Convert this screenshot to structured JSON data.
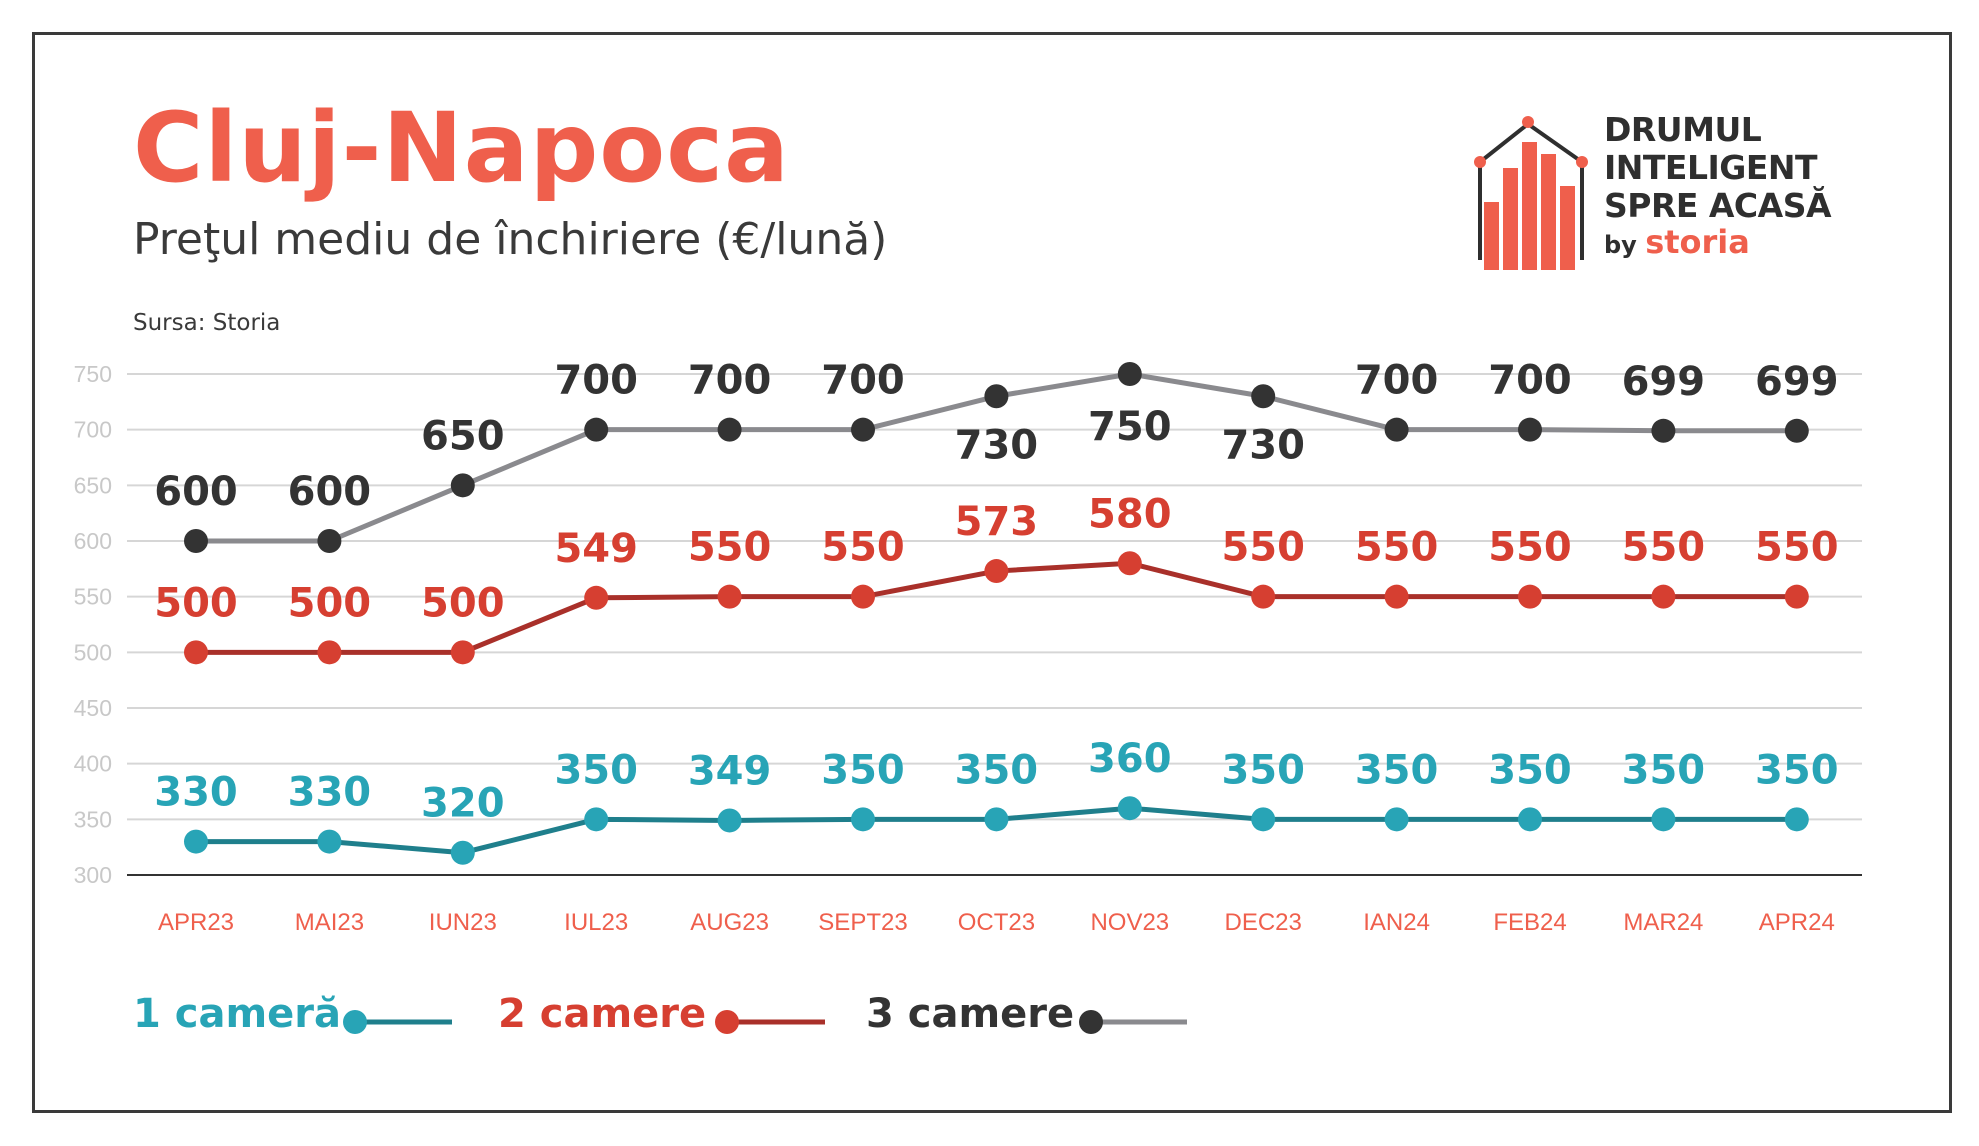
{
  "title": "Cluj-Napoca",
  "subtitle": "Preţul mediu de închiriere (€/lună)",
  "source": "Sursa: Storia",
  "logo": {
    "lines": [
      "DRUMUL",
      "INTELIGENT",
      "SPRE ACASĂ"
    ],
    "by": "by",
    "brand": "storia"
  },
  "colors": {
    "accent": "#ef5f4c",
    "series_1": "#28a4b6",
    "series_1_line": "#1f7f8c",
    "series_2": "#d63f31",
    "series_2_line": "#a9302a",
    "series_3": "#333333",
    "series_3_line": "#8a8a8e",
    "grid": "#d6d6d6",
    "axis_tick": "#c8c8c8",
    "category": "#ef5f4c"
  },
  "chart_data": {
    "type": "line",
    "title": "Cluj-Napoca",
    "subtitle": "Preţul mediu de închiriere (€/lună)",
    "categories": [
      "APR23",
      "MAI23",
      "IUN23",
      "IUL23",
      "AUG23",
      "SEPT23",
      "OCT23",
      "NOV23",
      "DEC23",
      "IAN24",
      "FEB24",
      "MAR24",
      "APR24"
    ],
    "ylim": [
      300,
      750
    ],
    "yticks": [
      "300",
      "350",
      "400",
      "450",
      "500",
      "550",
      "600",
      "650",
      "700",
      "750"
    ],
    "grid": true,
    "legend_position": "bottom-left",
    "series": [
      {
        "name": "1 cameră",
        "values": [
          330,
          330,
          320,
          350,
          349,
          350,
          350,
          360,
          350,
          350,
          350,
          350,
          350
        ]
      },
      {
        "name": "2 camere",
        "values": [
          500,
          500,
          500,
          549,
          550,
          550,
          573,
          580,
          550,
          550,
          550,
          550,
          550
        ]
      },
      {
        "name": "3 camere",
        "values": [
          600,
          600,
          650,
          700,
          700,
          700,
          730,
          750,
          730,
          700,
          700,
          699,
          699
        ]
      }
    ]
  }
}
